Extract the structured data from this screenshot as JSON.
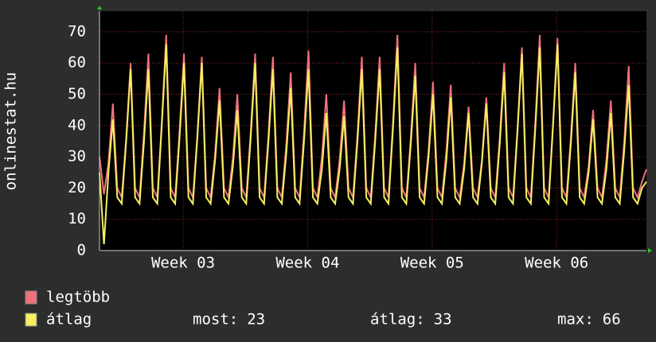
{
  "chart_data": {
    "type": "line",
    "y_label": "onlinestat.hu",
    "xlim": [
      0,
      30.75
    ],
    "xticks": [
      {
        "value": 4.7,
        "label": "Week 03"
      },
      {
        "value": 11.7,
        "label": "Week 04"
      },
      {
        "value": 18.7,
        "label": "Week 05"
      },
      {
        "value": 25.7,
        "label": "Week 06"
      }
    ],
    "ylim": [
      0,
      76.6
    ],
    "yticks": [
      0,
      10,
      20,
      30,
      40,
      50,
      60,
      70
    ],
    "grid": true,
    "x": [
      0,
      0.25,
      0.5,
      0.75,
      1,
      1.25,
      1.5,
      1.75,
      2,
      2.25,
      2.5,
      2.75,
      3,
      3.25,
      3.5,
      3.75,
      4,
      4.25,
      4.5,
      4.75,
      5,
      5.25,
      5.5,
      5.75,
      6,
      6.25,
      6.5,
      6.75,
      7,
      7.25,
      7.5,
      7.75,
      8,
      8.25,
      8.5,
      8.75,
      9,
      9.25,
      9.5,
      9.75,
      10,
      10.25,
      10.5,
      10.75,
      11,
      11.25,
      11.5,
      11.75,
      12,
      12.25,
      12.5,
      12.75,
      13,
      13.25,
      13.5,
      13.75,
      14,
      14.25,
      14.5,
      14.75,
      15,
      15.25,
      15.5,
      15.75,
      16,
      16.25,
      16.5,
      16.75,
      17,
      17.25,
      17.5,
      17.75,
      18,
      18.25,
      18.5,
      18.75,
      19,
      19.25,
      19.5,
      19.75,
      20,
      20.25,
      20.5,
      20.75,
      21,
      21.25,
      21.5,
      21.75,
      22,
      22.25,
      22.5,
      22.75,
      23,
      23.25,
      23.5,
      23.75,
      24,
      24.25,
      24.5,
      24.75,
      25,
      25.25,
      25.5,
      25.75,
      26,
      26.25,
      26.5,
      26.75,
      27,
      27.25,
      27.5,
      27.75,
      28,
      28.25,
      28.5,
      28.75,
      29,
      29.25,
      29.5,
      29.75,
      30,
      30.25,
      30.5,
      30.75
    ],
    "series": [
      {
        "name": "legtöbb",
        "color": "#f0707a",
        "values": [
          30,
          18,
          28,
          47,
          20,
          17,
          36,
          60,
          20,
          17,
          38,
          63,
          20,
          17,
          41,
          69,
          20,
          17,
          38,
          63,
          20,
          17,
          37,
          62,
          20,
          17,
          31,
          52,
          20,
          17,
          30,
          50,
          20,
          17,
          38,
          63,
          20,
          17,
          37,
          62,
          20,
          17,
          34,
          57,
          20,
          17,
          38,
          64,
          20,
          17,
          30,
          50,
          20,
          17,
          29,
          48,
          20,
          17,
          37,
          62,
          20,
          17,
          37,
          62,
          20,
          17,
          41,
          69,
          20,
          17,
          36,
          60,
          20,
          17,
          32,
          54,
          20,
          17,
          32,
          53,
          20,
          17,
          28,
          46,
          20,
          17,
          29,
          49,
          20,
          17,
          36,
          60,
          20,
          17,
          39,
          65,
          20,
          17,
          41,
          69,
          20,
          17,
          41,
          68,
          20,
          17,
          36,
          60,
          20,
          17,
          27,
          45,
          20,
          17,
          29,
          48,
          20,
          17,
          35,
          59,
          20,
          17,
          22,
          26
        ]
      },
      {
        "name": "átlag",
        "color": "#f4f060",
        "values": [
          25,
          2,
          25,
          42,
          17,
          15,
          35,
          58,
          17,
          15,
          35,
          58,
          17,
          15,
          40,
          66,
          17,
          15,
          36,
          60,
          17,
          15,
          36,
          60,
          17,
          15,
          29,
          48,
          17,
          15,
          27,
          45,
          17,
          15,
          36,
          60,
          17,
          15,
          35,
          58,
          17,
          15,
          31,
          52,
          17,
          15,
          35,
          58,
          17,
          15,
          26,
          44,
          17,
          15,
          26,
          43,
          17,
          15,
          35,
          58,
          17,
          15,
          35,
          58,
          17,
          15,
          39,
          65,
          17,
          15,
          34,
          56,
          17,
          15,
          30,
          50,
          17,
          15,
          29,
          49,
          17,
          15,
          26,
          44,
          17,
          15,
          28,
          47,
          17,
          15,
          34,
          57,
          17,
          15,
          38,
          63,
          17,
          15,
          39,
          65,
          17,
          15,
          40,
          66,
          17,
          15,
          34,
          57,
          17,
          15,
          25,
          42,
          17,
          15,
          26,
          44,
          17,
          15,
          32,
          53,
          17,
          15,
          20,
          22
        ]
      }
    ],
    "stats": [
      {
        "label": "most:",
        "value": 23
      },
      {
        "label": "átlag:",
        "value": 33
      },
      {
        "label": "max:",
        "value": 66
      }
    ]
  }
}
